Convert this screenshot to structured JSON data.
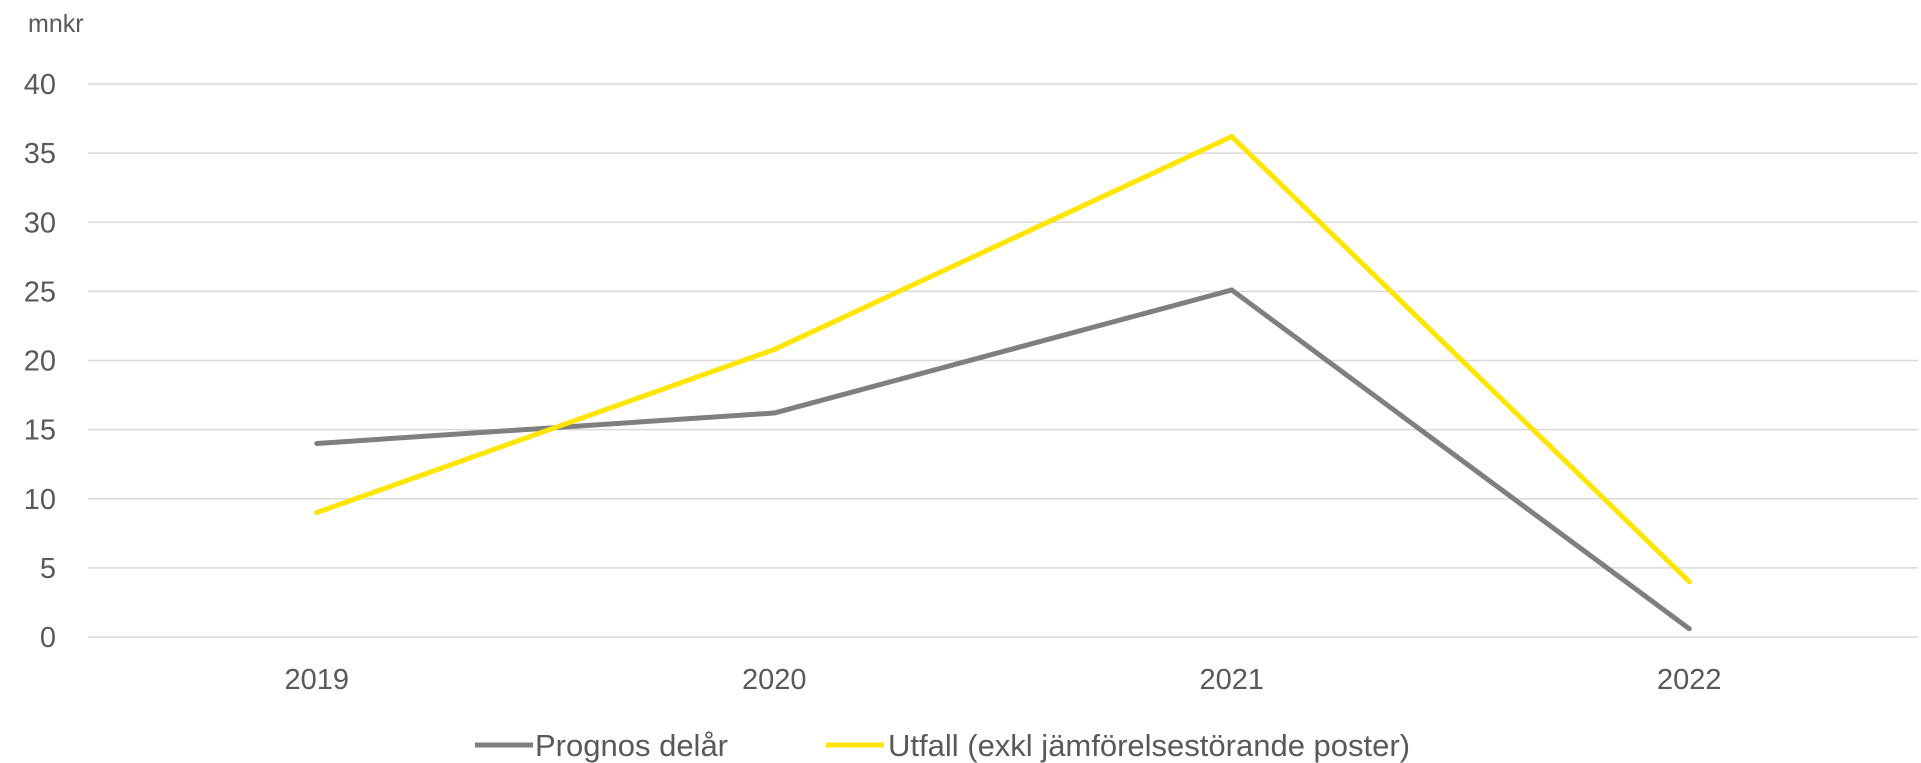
{
  "chart_data": {
    "type": "line",
    "unit_label": "mnkr",
    "categories": [
      "2019",
      "2020",
      "2021",
      "2022"
    ],
    "ylim": [
      0,
      40
    ],
    "yticks": [
      0,
      5,
      10,
      15,
      20,
      25,
      30,
      35,
      40
    ],
    "grid": true,
    "legend_position": "bottom",
    "series": [
      {
        "name": "Prognos delår",
        "color": "#7f7f7f",
        "values": [
          14.0,
          16.2,
          25.1,
          0.6
        ]
      },
      {
        "name": "Utfall (exkl jämförelsestörande poster)",
        "color": "#ffe500",
        "values": [
          9.0,
          20.8,
          36.2,
          4.0
        ]
      }
    ]
  }
}
